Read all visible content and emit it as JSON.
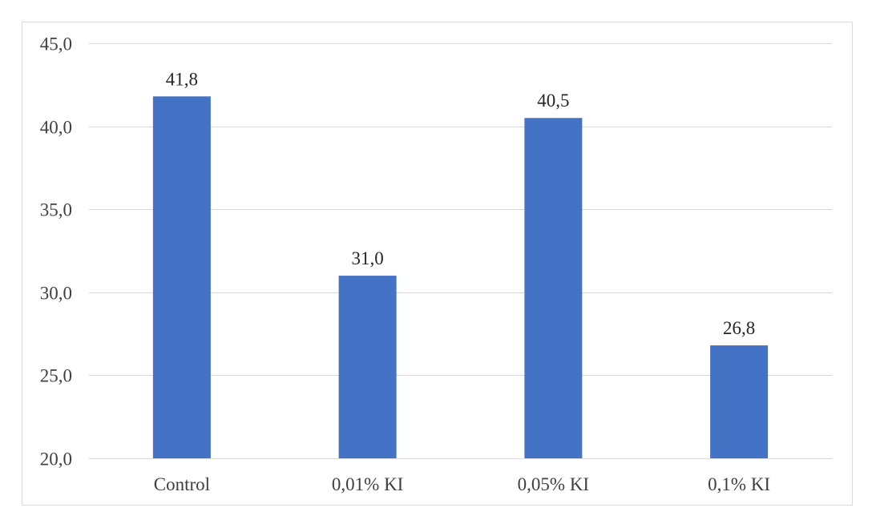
{
  "chart_data": {
    "type": "bar",
    "categories": [
      "Control",
      "0,01% KI",
      "0,05% KI",
      "0,1% KI"
    ],
    "values": [
      41.8,
      31.0,
      40.5,
      26.8
    ],
    "data_labels": [
      "41,8",
      "31,0",
      "40,5",
      "26,8"
    ],
    "ylim": [
      20,
      45
    ],
    "y_ticks": [
      20,
      25,
      30,
      35,
      40,
      45
    ],
    "y_tick_labels": [
      "20,0",
      "25,0",
      "30,0",
      "35,0",
      "40,0",
      "45,0"
    ],
    "grid": true,
    "legend": "none",
    "bar_color": "#4472c4"
  }
}
